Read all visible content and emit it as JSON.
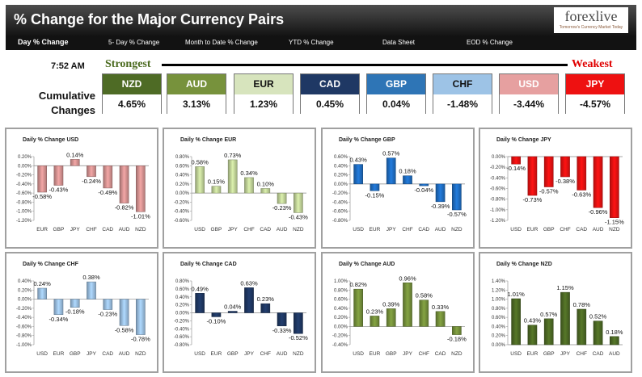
{
  "header": {
    "title": "% Change for the Major Currency Pairs",
    "logo_text": "forexlive",
    "logo_tagline": "Tomorrow's Currency Market Today",
    "colors": {
      "bar_top": "#4d4d4d",
      "bar_bottom": "#141414"
    }
  },
  "nav": {
    "items": [
      {
        "label": "Day % Change",
        "active": true
      },
      {
        "label": "5- Day % Change",
        "active": false
      },
      {
        "label": "Month to Date % Change",
        "active": false
      },
      {
        "label": "YTD % Change",
        "active": false
      },
      {
        "label": "Data Sheet",
        "active": false
      },
      {
        "label": "EOD % Change",
        "active": false
      }
    ]
  },
  "strength": {
    "time": "7:52 AM",
    "strongest_label": "Strongest",
    "weakest_label": "Weakest",
    "cumulative_label_line1": "Cumulative",
    "cumulative_label_line2": "Changes",
    "currencies": [
      {
        "code": "NZD",
        "value": "4.65%",
        "color": "#4e6b25",
        "text_color": "#ffffff"
      },
      {
        "code": "AUD",
        "value": "3.13%",
        "color": "#77923c",
        "text_color": "#ffffff"
      },
      {
        "code": "EUR",
        "value": "1.23%",
        "color": "#d7e4bd",
        "text_color": "#111111"
      },
      {
        "code": "CAD",
        "value": "0.45%",
        "color": "#1f3864",
        "text_color": "#ffffff"
      },
      {
        "code": "GBP",
        "value": "0.04%",
        "color": "#2e75b6",
        "text_color": "#ffffff"
      },
      {
        "code": "CHF",
        "value": "-1.48%",
        "color": "#9dc3e6",
        "text_color": "#111111"
      },
      {
        "code": "USD",
        "value": "-3.44%",
        "color": "#e6a0a0",
        "text_color": "#ffffff"
      },
      {
        "code": "JPY",
        "value": "-4.57%",
        "color": "#ee1111",
        "text_color": "#ffffff"
      }
    ]
  },
  "chart_data": [
    {
      "type": "bar",
      "title": "Daily % Change USD",
      "color": "#d99594",
      "categories": [
        "EUR",
        "GBP",
        "JPY",
        "CHF",
        "CAD",
        "AUD",
        "NZD"
      ],
      "values": [
        -0.58,
        -0.43,
        0.14,
        -0.24,
        -0.49,
        -0.82,
        -1.01
      ],
      "data_labels": [
        "-0.58%",
        "-0.43%",
        "0.14%",
        "-0.24%",
        "-0.49%",
        "-0.82%",
        "-1.01%"
      ],
      "ylim": [
        -1.2,
        0.2
      ],
      "tick_labels": [
        "0.20%",
        "0.00%",
        "-0.20%",
        "-0.40%",
        "-0.60%",
        "-0.80%",
        "-1.00%",
        "-1.20%"
      ]
    },
    {
      "type": "bar",
      "title": "Daily % Change EUR",
      "color": "#c4d79b",
      "categories": [
        "USD",
        "GBP",
        "JPY",
        "CHF",
        "CAD",
        "AUD",
        "NZD"
      ],
      "values": [
        0.58,
        0.15,
        0.73,
        0.34,
        0.1,
        -0.23,
        -0.43
      ],
      "data_labels": [
        "0.58%",
        "0.15%",
        "0.73%",
        "0.34%",
        "0.10%",
        "-0.23%",
        "-0.43%"
      ],
      "ylim": [
        -0.6,
        0.8
      ],
      "tick_labels": [
        "0.80%",
        "0.60%",
        "0.40%",
        "0.20%",
        "0.00%",
        "-0.20%",
        "-0.40%",
        "-0.60%"
      ]
    },
    {
      "type": "bar",
      "title": "Daily % Change GBP",
      "color": "#1f6fc5",
      "categories": [
        "USD",
        "EUR",
        "JPY",
        "CHF",
        "CAD",
        "AUD",
        "NZD"
      ],
      "values": [
        0.43,
        -0.15,
        0.57,
        0.18,
        -0.04,
        -0.39,
        -0.57
      ],
      "data_labels": [
        "0.43%",
        "-0.15%",
        "0.57%",
        "0.18%",
        "-0.04%",
        "-0.39%",
        "-0.57%"
      ],
      "ylim": [
        -0.8,
        0.6
      ],
      "tick_labels": [
        "0.60%",
        "0.40%",
        "0.20%",
        "0.00%",
        "-0.20%",
        "-0.40%",
        "-0.60%",
        "-0.80%"
      ]
    },
    {
      "type": "bar",
      "title": "Daily % Change JPY",
      "color": "#ee1111",
      "categories": [
        "USD",
        "EUR",
        "GBP",
        "CHF",
        "CAD",
        "AUD",
        "NZD"
      ],
      "values": [
        -0.14,
        -0.73,
        -0.57,
        -0.38,
        -0.63,
        -0.96,
        -1.15
      ],
      "data_labels": [
        "-0.14%",
        "-0.73%",
        "-0.57%",
        "-0.38%",
        "-0.63%",
        "-0.96%",
        "-1.15%"
      ],
      "ylim": [
        -1.2,
        0.0
      ],
      "tick_labels": [
        "0.00%",
        "-0.20%",
        "-0.40%",
        "-0.60%",
        "-0.80%",
        "-1.00%",
        "-1.20%"
      ]
    },
    {
      "type": "bar",
      "title": "Daily % Change CHF",
      "color": "#9dc3e6",
      "categories": [
        "USD",
        "EUR",
        "GBP",
        "JPY",
        "CAD",
        "AUD",
        "NZD"
      ],
      "values": [
        0.24,
        -0.34,
        -0.18,
        0.38,
        -0.23,
        -0.58,
        -0.78
      ],
      "data_labels": [
        "0.24%",
        "-0.34%",
        "-0.18%",
        "0.38%",
        "-0.23%",
        "-0.58%",
        "-0.78%"
      ],
      "ylim": [
        -1.0,
        0.4
      ],
      "tick_labels": [
        "0.40%",
        "0.20%",
        "0.00%",
        "-0.20%",
        "-0.40%",
        "-0.60%",
        "-0.80%",
        "-1.00%"
      ]
    },
    {
      "type": "bar",
      "title": "Daily % Change CAD",
      "color": "#1f3864",
      "categories": [
        "USD",
        "EUR",
        "GBP",
        "JPY",
        "CHF",
        "AUD",
        "NZD"
      ],
      "values": [
        0.49,
        -0.1,
        0.04,
        0.63,
        0.23,
        -0.33,
        -0.52
      ],
      "data_labels": [
        "0.49%",
        "-0.10%",
        "0.04%",
        "0.63%",
        "0.23%",
        "-0.33%",
        "-0.52%"
      ],
      "ylim": [
        -0.8,
        0.8
      ],
      "tick_labels": [
        "0.80%",
        "0.60%",
        "0.40%",
        "0.20%",
        "0.00%",
        "-0.20%",
        "-0.40%",
        "-0.60%",
        "-0.80%"
      ]
    },
    {
      "type": "bar",
      "title": "Daily % Change AUD",
      "color": "#77923c",
      "categories": [
        "USD",
        "EUR",
        "GBP",
        "JPY",
        "CHF",
        "CAD",
        "NZD"
      ],
      "values": [
        0.82,
        0.23,
        0.39,
        0.96,
        0.58,
        0.33,
        -0.18
      ],
      "data_labels": [
        "0.82%",
        "0.23%",
        "0.39%",
        "0.96%",
        "0.58%",
        "0.33%",
        "-0.18%"
      ],
      "ylim": [
        -0.4,
        1.0
      ],
      "tick_labels": [
        "1.00%",
        "0.80%",
        "0.60%",
        "0.40%",
        "0.20%",
        "0.00%",
        "-0.20%",
        "-0.40%"
      ]
    },
    {
      "type": "bar",
      "title": "Daily % Change NZD",
      "color": "#4e6b25",
      "categories": [
        "USD",
        "EUR",
        "GBP",
        "JPY",
        "CHF",
        "CAD",
        "AUD"
      ],
      "values": [
        1.01,
        0.43,
        0.57,
        1.15,
        0.78,
        0.52,
        0.18
      ],
      "data_labels": [
        "1.01%",
        "0.43%",
        "0.57%",
        "1.15%",
        "0.78%",
        "0.52%",
        "0.18%"
      ],
      "ylim": [
        0.0,
        1.4
      ],
      "tick_labels": [
        "1.40%",
        "1.20%",
        "1.00%",
        "0.80%",
        "0.60%",
        "0.40%",
        "0.20%",
        "0.00%"
      ]
    }
  ]
}
